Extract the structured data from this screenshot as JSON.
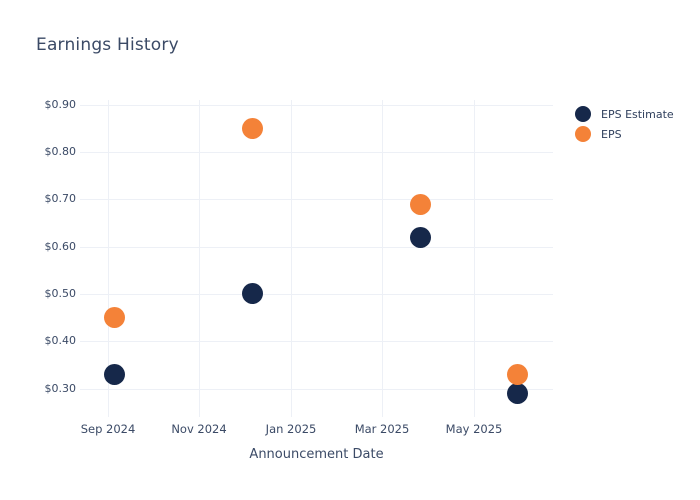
{
  "chart_data": {
    "type": "scatter",
    "title": "Earnings History",
    "xlabel": "Announcement Date",
    "ylabel": "",
    "grid": true,
    "legend_position": "outside-right-top",
    "background_color": "#ffffff",
    "text_color": "#3b4a66",
    "grid_color": "#edf0f6",
    "marker_diameter_px": 21,
    "y_axis": {
      "tick_labels": [
        "$0.30",
        "$0.40",
        "$0.50",
        "$0.60",
        "$0.70",
        "$0.80",
        "$0.90"
      ],
      "tick_values": [
        0.3,
        0.4,
        0.5,
        0.6,
        0.7,
        0.8,
        0.9
      ],
      "range": [
        0.24,
        0.91
      ]
    },
    "x_axis": {
      "tick_labels": [
        "Sep 2024",
        "Nov 2024",
        "Jan 2025",
        "Mar 2025",
        "May 2025"
      ],
      "tick_positions_months": [
        0,
        2,
        4,
        6,
        8
      ],
      "range_months": [
        -0.61,
        9.73
      ]
    },
    "series": [
      {
        "name": "EPS Estimate",
        "color": "#16284a",
        "marker": "circle",
        "x_months": [
          0.15,
          3.17,
          6.84,
          8.95
        ],
        "approx_dates": [
          "2024-09-05",
          "2024-12-05",
          "2025-03-26",
          "2025-05-29"
        ],
        "values": [
          0.33,
          0.5,
          0.62,
          0.29
        ]
      },
      {
        "name": "EPS",
        "color": "#f48238",
        "marker": "circle",
        "x_months": [
          0.15,
          3.17,
          6.84,
          8.95
        ],
        "approx_dates": [
          "2024-09-05",
          "2024-12-05",
          "2025-03-26",
          "2025-05-29"
        ],
        "values": [
          0.45,
          0.85,
          0.69,
          0.33
        ]
      }
    ]
  }
}
